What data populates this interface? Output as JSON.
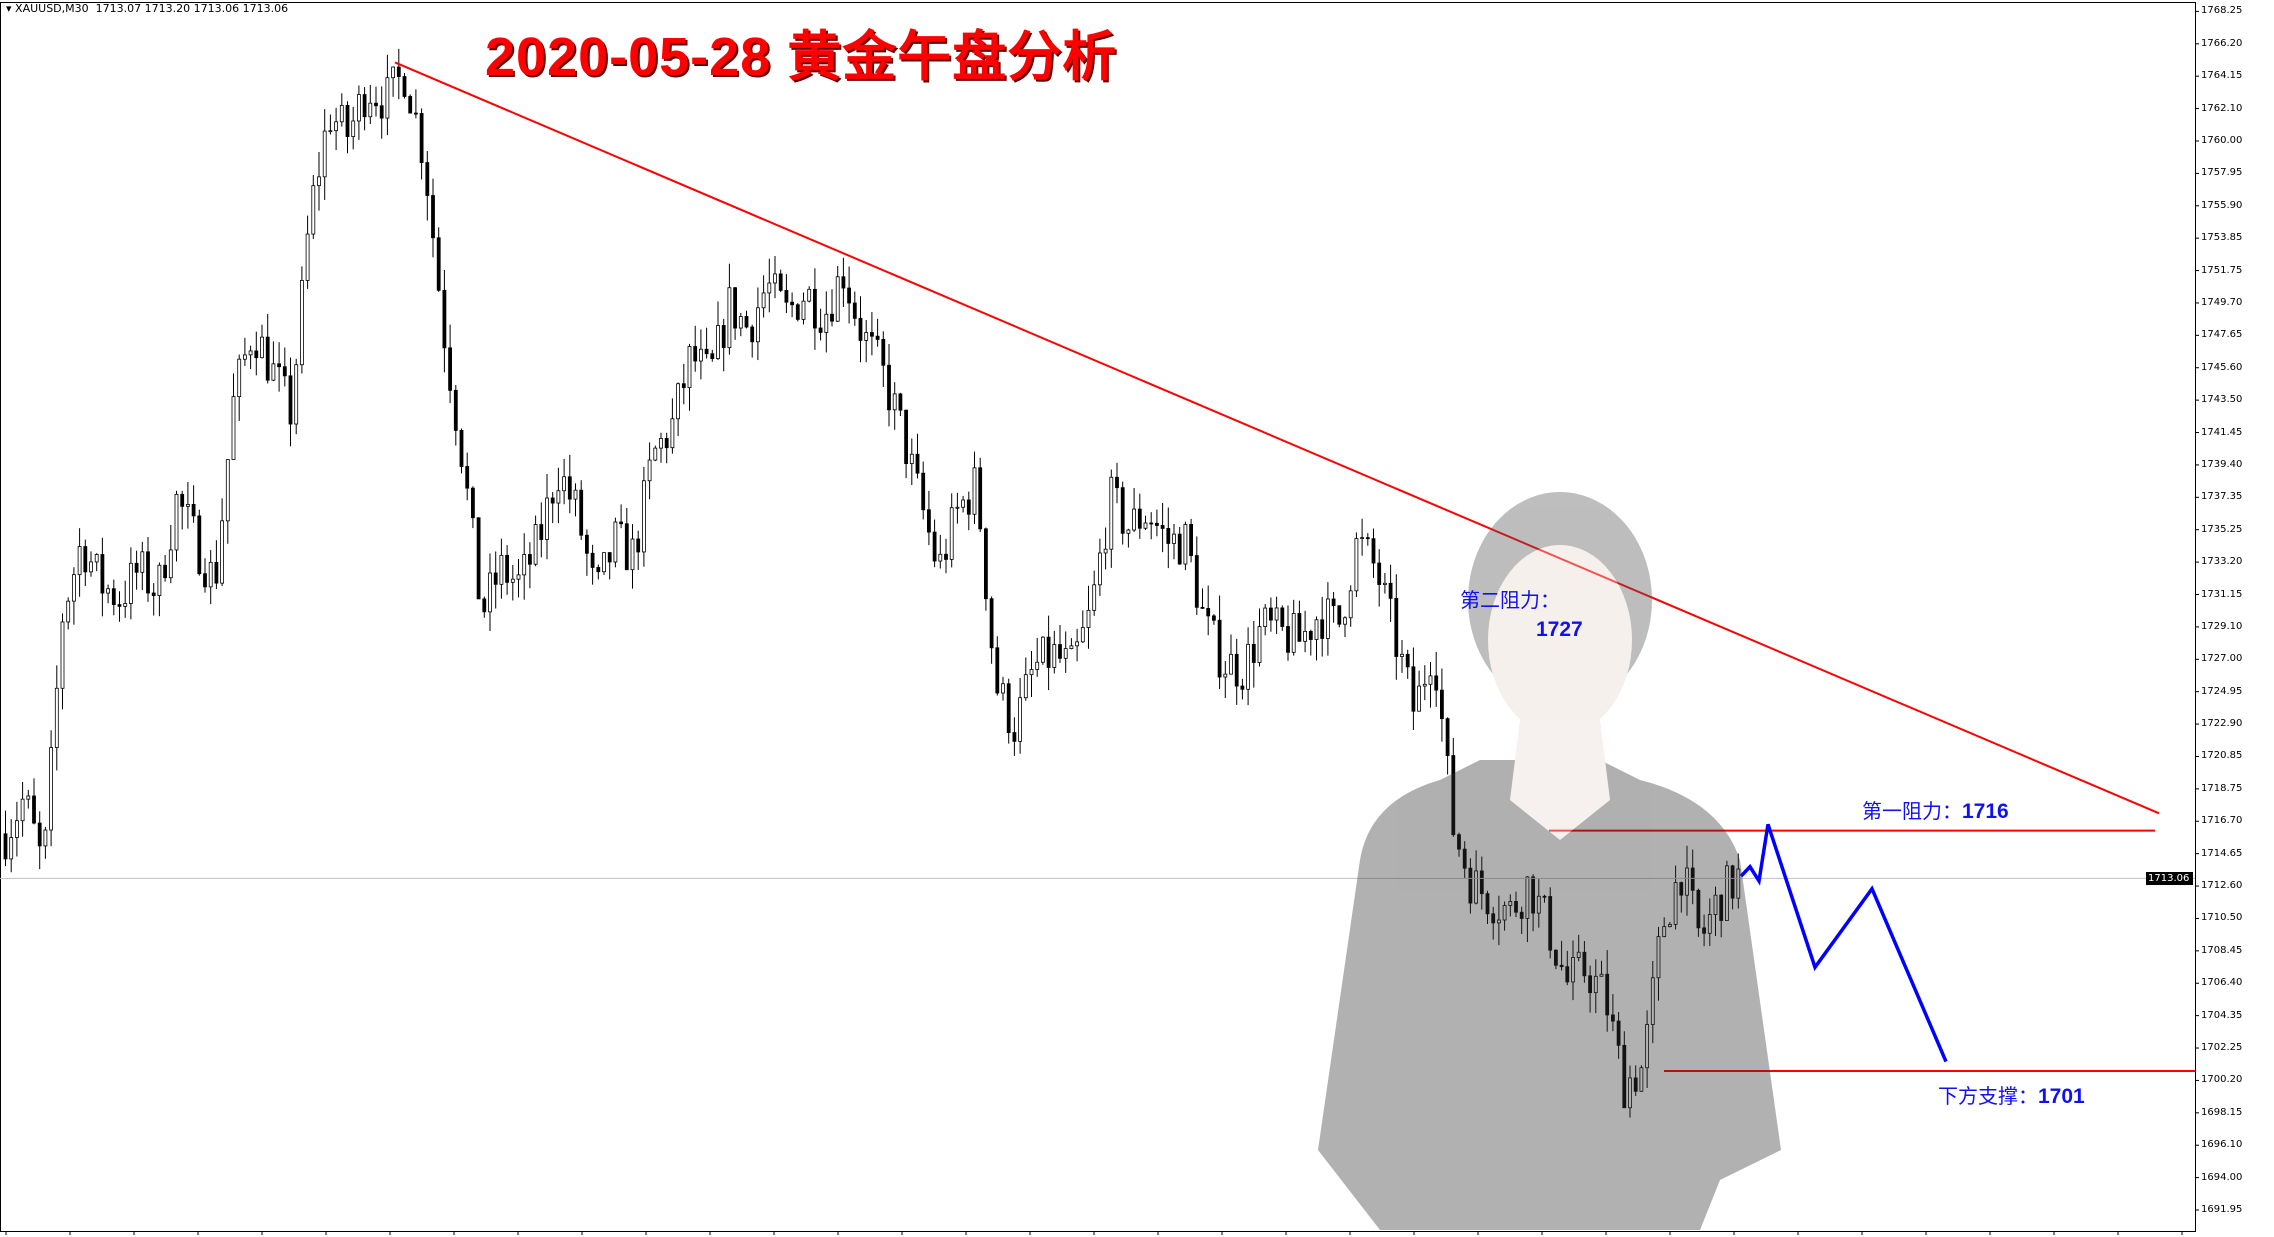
{
  "header": {
    "symbol": "XAUUSD,M30",
    "ohlc": "1713.07 1713.20 1713.06 1713.06"
  },
  "title": "2020-05-28  黄金午盘分析",
  "annotations": {
    "resistance2_label": "第二阻力：",
    "resistance2_value": "1727",
    "resistance1_label": "第一阻力：",
    "resistance1_value": "1716",
    "support_label": "下方支撑：",
    "support_value": "1701"
  },
  "current_price": "1713.06",
  "colors": {
    "trendline": "#ff0000",
    "projection": "#0000ff",
    "candle": "#000000",
    "background": "#ffffff",
    "title": "#ff0000",
    "annotation": "#1010f0"
  },
  "chart_data": {
    "type": "candlestick",
    "symbol": "XAUUSD",
    "timeframe": "M30",
    "ylim": [
      1691.95,
      1768.25
    ],
    "y_ticks": [
      "1768.25",
      "1766.20",
      "1764.15",
      "1762.10",
      "1760.00",
      "1757.95",
      "1755.90",
      "1753.85",
      "1751.75",
      "1749.70",
      "1747.65",
      "1745.60",
      "1743.50",
      "1741.45",
      "1739.40",
      "1737.35",
      "1735.25",
      "1733.20",
      "1731.15",
      "1729.10",
      "1727.00",
      "1724.95",
      "1722.90",
      "1720.85",
      "1718.75",
      "1716.70",
      "1714.65",
      "1712.60",
      "1710.50",
      "1708.45",
      "1706.40",
      "1704.35",
      "1702.25",
      "1700.20",
      "1698.15",
      "1696.10",
      "1694.00",
      "1691.95"
    ],
    "approx_close_path": [
      1715.9,
      1718.2,
      1713.6,
      1729.9,
      1734.5,
      1731.8,
      1730.9,
      1732.7,
      1731.3,
      1737.2,
      1734.5,
      1731.8,
      1743.6,
      1748.1,
      1745.4,
      1742.7,
      1755.4,
      1761.7,
      1760.4,
      1763.5,
      1762.6,
      1764.4,
      1759.0,
      1748.1,
      1739.9,
      1729.9,
      1732.7,
      1731.8,
      1734.5,
      1739.1,
      1736.4,
      1730.9,
      1734.5,
      1733.6,
      1739.9,
      1741.8,
      1746.3,
      1744.9,
      1749.5,
      1748.1,
      1750.8,
      1749.0,
      1750.4,
      1749.0,
      1751.7,
      1747.7,
      1745.4,
      1741.8,
      1737.2,
      1732.7,
      1736.4,
      1738.2,
      1725.4,
      1722.7,
      1726.4,
      1727.3,
      1726.4,
      1729.9,
      1737.2,
      1735.4,
      1736.4,
      1734.5,
      1734.5,
      1729.1,
      1726.8,
      1726.4,
      1729.1,
      1728.6,
      1728.2,
      1730.0,
      1729.1,
      1734.5,
      1732.7,
      1728.2,
      1723.6,
      1728.2,
      1716.4,
      1712.8,
      1711.8,
      1710.9,
      1712.8,
      1710.0,
      1706.4,
      1707.3,
      1705.5,
      1700.0,
      1701.0,
      1710.0,
      1713.6,
      1709.1,
      1711.8,
      1713.1
    ],
    "trendline": {
      "from_price": 1765.0,
      "to_price": 1717.2
    },
    "levels": {
      "resistance1": 1716.1,
      "support": 1700.8
    },
    "projection_path": [
      1713.2,
      1713.8,
      1712.9,
      1716.5,
      1707.4,
      1712.4,
      1701.4
    ]
  }
}
